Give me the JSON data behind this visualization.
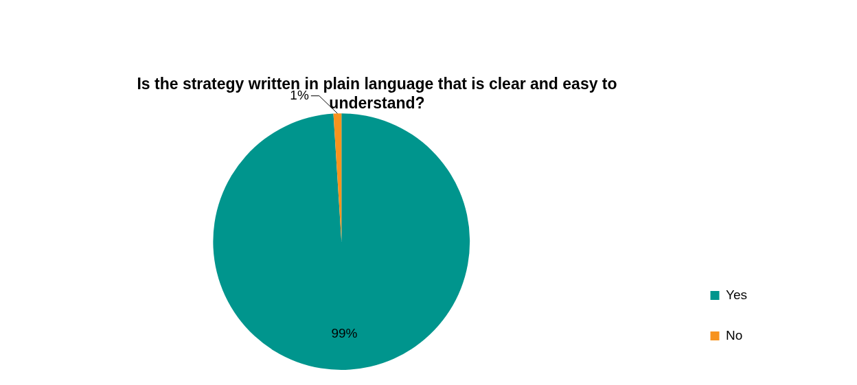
{
  "chart_data": {
    "type": "pie",
    "title": "Is the strategy written in plain language that is clear and easy to understand?",
    "categories": [
      "Yes",
      "No"
    ],
    "values": [
      99,
      1
    ],
    "value_labels": [
      "99%",
      "1%"
    ],
    "colors": [
      "#00958d",
      "#f7931e"
    ],
    "legend": "right"
  }
}
